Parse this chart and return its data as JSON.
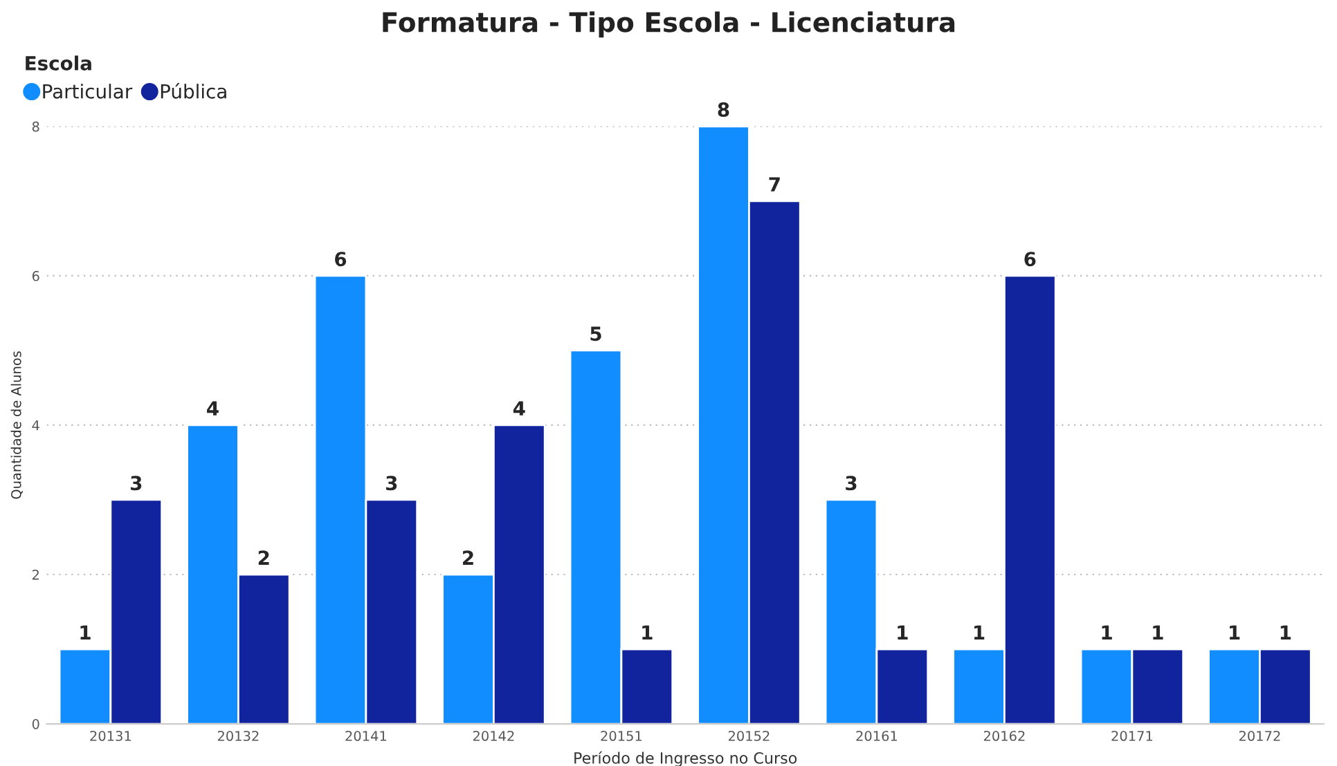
{
  "chart_data": {
    "type": "bar",
    "title": "Formatura - Tipo Escola - Licenciatura",
    "xlabel": "Período de Ingresso no Curso",
    "ylabel": "Quantidade de Alunos",
    "legend_title": "Escola",
    "categories": [
      "20131",
      "20132",
      "20141",
      "20142",
      "20151",
      "20152",
      "20161",
      "20162",
      "20171",
      "20172"
    ],
    "series": [
      {
        "name": "Particular",
        "color": "#118dff",
        "values": [
          1,
          4,
          6,
          2,
          5,
          8,
          3,
          1,
          1,
          1
        ]
      },
      {
        "name": "Pública",
        "color": "#12239e",
        "values": [
          3,
          2,
          3,
          4,
          1,
          7,
          1,
          6,
          1,
          1
        ]
      }
    ],
    "ylim": [
      0,
      8
    ],
    "yticks": [
      0,
      2,
      4,
      6,
      8
    ],
    "grid": "y",
    "legend": "top left",
    "data_labels": true
  }
}
